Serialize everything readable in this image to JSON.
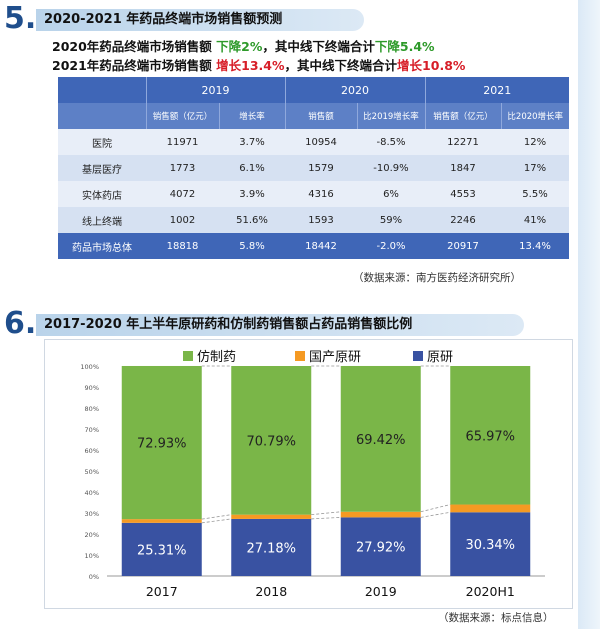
{
  "section5": {
    "number": "5.",
    "title": "2020-2021 年药品终端市场销售额预测",
    "line1": {
      "prefix": "2020年药品终端市场销售额",
      "change": "下降2%",
      "mid": "，其中线下终端合计",
      "change2": "下降5.4%"
    },
    "line2": {
      "prefix": "2021年药品终端市场销售额",
      "change": "增长13.4%",
      "mid": "，其中线下终端合计",
      "change2": "增长10.8%"
    },
    "table": {
      "years": [
        "2019",
        "2020",
        "2021"
      ],
      "subheaders": [
        "销售额（亿元）",
        "增长率",
        "销售额",
        "比2019增长率",
        "销售额（亿元）",
        "比2020增长率"
      ],
      "rows": [
        {
          "name": "医院",
          "v": [
            "11971",
            "3.7%",
            "10954",
            "-8.5%",
            "12271",
            "12%"
          ]
        },
        {
          "name": "基层医疗",
          "v": [
            "1773",
            "6.1%",
            "1579",
            "-10.9%",
            "1847",
            "17%"
          ]
        },
        {
          "name": "实体药店",
          "v": [
            "4072",
            "3.9%",
            "4316",
            "6%",
            "4553",
            "5.5%"
          ]
        },
        {
          "name": "线上终端",
          "v": [
            "1002",
            "51.6%",
            "1593",
            "59%",
            "2246",
            "41%"
          ]
        },
        {
          "name": "药品市场总体",
          "v": [
            "18818",
            "5.8%",
            "18442",
            "-2.0%",
            "20917",
            "13.4%"
          ]
        }
      ]
    },
    "source": "（数据来源：南方医药经济研究所）"
  },
  "section6": {
    "number": "6.",
    "title": "2017-2020 年上半年原研药和仿制药销售额占药品销售额比例",
    "source": "（数据来源：标点信息）"
  },
  "colors": {
    "generic": "#7ab648",
    "domestic": "#f59a23",
    "original": "#3952a2",
    "header": "#3f66b7"
  },
  "chart_data": {
    "type": "bar",
    "stacked": true,
    "categories": [
      "2017",
      "2018",
      "2019",
      "2020H1"
    ],
    "series": [
      {
        "name": "原研",
        "values": [
          25.31,
          27.18,
          27.92,
          30.34
        ],
        "labels": [
          "25.31%",
          "27.18%",
          "27.92%",
          "30.34%"
        ]
      },
      {
        "name": "国产原研",
        "values": [
          1.77,
          2.03,
          2.67,
          3.69
        ],
        "labels": [
          "1.77%",
          "2.03%",
          "2.67%",
          "3.69%"
        ]
      },
      {
        "name": "仿制药",
        "values": [
          72.93,
          70.79,
          69.42,
          65.97
        ],
        "labels": [
          "72.93%",
          "70.79%",
          "69.42%",
          "65.97%"
        ]
      }
    ],
    "legend_order": [
      "仿制药",
      "国产原研",
      "原研"
    ],
    "yticks": [
      "0%",
      "10%",
      "20%",
      "30%",
      "40%",
      "50%",
      "60%",
      "70%",
      "80%",
      "90%",
      "100%"
    ],
    "ylim": [
      0,
      100
    ],
    "legend": "top"
  }
}
